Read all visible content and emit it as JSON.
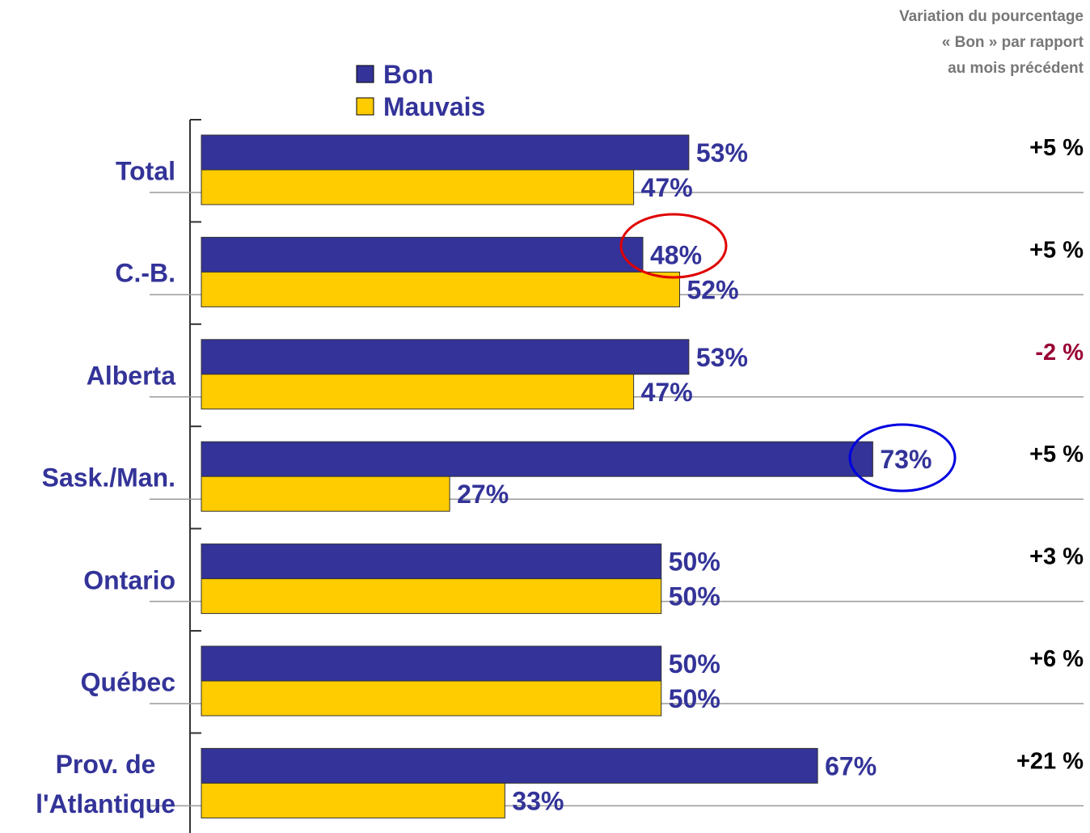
{
  "chart_data": {
    "type": "bar",
    "orientation": "horizontal",
    "categories": [
      "Total",
      "C.-B.",
      "Alberta",
      "Sask./Man.",
      "Ontario",
      "Québec",
      "Prov. de\nl'Atlantique"
    ],
    "series": [
      {
        "name": "Bon",
        "color": "#333399",
        "values": [
          53,
          48,
          53,
          73,
          50,
          50,
          67
        ],
        "value_labels": [
          "53%",
          "48%",
          "53%",
          "73%",
          "50%",
          "50%",
          "67%"
        ]
      },
      {
        "name": "Mauvais",
        "color": "#ffcc00",
        "values": [
          47,
          52,
          47,
          27,
          50,
          50,
          33
        ],
        "value_labels": [
          "47%",
          "52%",
          "47%",
          "27%",
          "50%",
          "50%",
          "33%"
        ]
      }
    ],
    "xlim": [
      0,
      96
    ],
    "changes": {
      "title_lines": [
        "Variation du pourcentage",
        "« Bon » par rapport",
        "au mois précédent"
      ],
      "values": [
        5,
        5,
        -2,
        5,
        3,
        6,
        21
      ],
      "value_labels": [
        "+5 %",
        "+5 %",
        "-2 %",
        "+5 %",
        "+3 %",
        "+6 %",
        "+21 %"
      ],
      "positive_color": "#000000",
      "negative_color": "#990033"
    }
  }
}
